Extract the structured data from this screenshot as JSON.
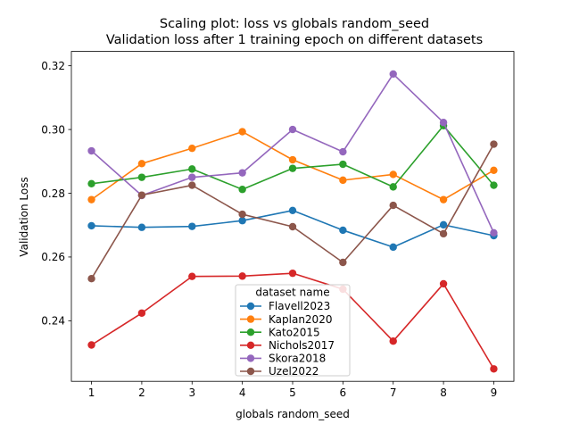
{
  "chart_data": {
    "type": "line",
    "title": "Scaling plot: loss vs globals random_seed",
    "subtitle": "Validation loss after 1 training epoch on different datasets",
    "xlabel": "globals random_seed",
    "ylabel": "Validation Loss",
    "x": [
      1,
      2,
      3,
      4,
      5,
      6,
      7,
      8,
      9
    ],
    "xlim": [
      0.6,
      9.4
    ],
    "ylim": [
      0.221,
      0.3245
    ],
    "xticks": [
      "1",
      "2",
      "3",
      "4",
      "5",
      "6",
      "7",
      "8",
      "9"
    ],
    "yticks": [
      0.24,
      0.26,
      0.28,
      0.3,
      0.32
    ],
    "ytick_labels": [
      "0.24",
      "0.26",
      "0.28",
      "0.30",
      "0.32"
    ],
    "grid": false,
    "legend_title": "dataset name",
    "legend_position": "lower-center",
    "series": [
      {
        "name": "Flavell2023",
        "color": "#1f77b4",
        "values": [
          0.2698,
          0.2693,
          0.2696,
          0.2714,
          0.2746,
          0.2684,
          0.2631,
          0.2701,
          0.2667
        ]
      },
      {
        "name": "Kaplan2020",
        "color": "#ff7f0e",
        "values": [
          0.278,
          0.2893,
          0.2941,
          0.2993,
          0.2905,
          0.2841,
          0.2859,
          0.278,
          0.2872
        ]
      },
      {
        "name": "Kato2015",
        "color": "#2ca02c",
        "values": [
          0.283,
          0.285,
          0.2876,
          0.2812,
          0.2878,
          0.2891,
          0.282,
          0.3012,
          0.2825
        ]
      },
      {
        "name": "Nichols2017",
        "color": "#d62728",
        "values": [
          0.2324,
          0.2424,
          0.2539,
          0.254,
          0.2549,
          0.2499,
          0.2336,
          0.2516,
          0.2249
        ]
      },
      {
        "name": "Skora2018",
        "color": "#9467bd",
        "values": [
          0.2933,
          0.2793,
          0.285,
          0.2864,
          0.3,
          0.293,
          0.3174,
          0.3022,
          0.2676
        ]
      },
      {
        "name": "Uzel2022",
        "color": "#8c564b",
        "values": [
          0.2532,
          0.2794,
          0.2825,
          0.2734,
          0.2695,
          0.2583,
          0.2762,
          0.2673,
          0.2954
        ]
      }
    ]
  }
}
